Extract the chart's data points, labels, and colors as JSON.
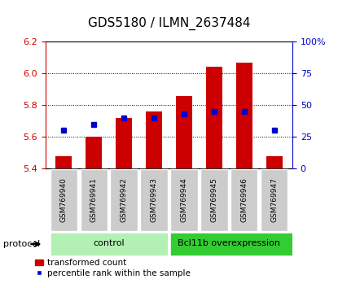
{
  "title": "GDS5180 / ILMN_2637484",
  "samples": [
    "GSM769940",
    "GSM769941",
    "GSM769942",
    "GSM769943",
    "GSM769944",
    "GSM769945",
    "GSM769946",
    "GSM769947"
  ],
  "red_values": [
    5.48,
    5.6,
    5.72,
    5.76,
    5.86,
    6.04,
    6.07,
    5.48
  ],
  "blue_pct": [
    30,
    35,
    40,
    40,
    43,
    45,
    45,
    30
  ],
  "ylim_left": [
    5.4,
    6.2
  ],
  "ylim_right": [
    0,
    100
  ],
  "yticks_left": [
    5.4,
    5.6,
    5.8,
    6.0,
    6.2
  ],
  "yticks_right": [
    0,
    25,
    50,
    75,
    100
  ],
  "bar_color": "#cc0000",
  "square_color": "#0000cc",
  "bar_baseline": 5.4,
  "group1_label": "control",
  "group1_color": "#b3f0b3",
  "group2_label": "Bcl11b overexpression",
  "group2_color": "#33cc33",
  "protocol_label": "protocol",
  "legend_bar": "transformed count",
  "legend_sq": "percentile rank within the sample",
  "title_fontsize": 11,
  "axis_color_left": "#cc0000",
  "axis_color_right": "#0000cc",
  "label_box_color": "#cccccc"
}
